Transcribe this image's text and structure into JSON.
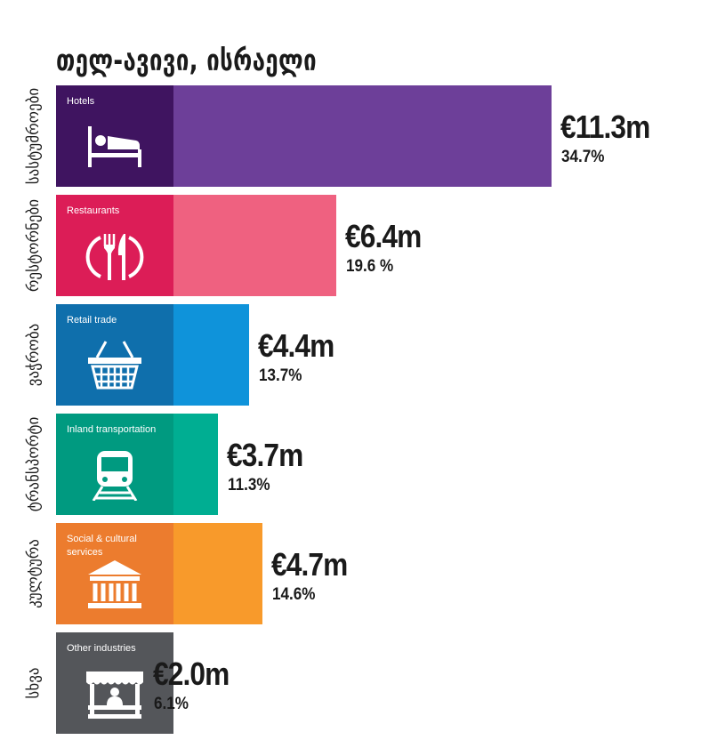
{
  "chart_data": {
    "type": "bar",
    "title": "თელ-ავივი, ისრაელი",
    "categories": [
      "Hotels",
      "Restaurants",
      "Retail trade",
      "Inland transportation",
      "Social & cultural services",
      "Other industries"
    ],
    "side_labels": [
      "სასტუმროები",
      "რესტორნები",
      "ვაჭრობა",
      "ტრანსპორტი",
      "კულტურა",
      "სხვა"
    ],
    "values": [
      11.3,
      6.4,
      4.4,
      3.7,
      4.7,
      2.0
    ],
    "value_labels": [
      "€11.3m",
      "€6.4m",
      "€4.4m",
      "€3.7m",
      "€4.7m",
      "€2.0m"
    ],
    "percent_labels": [
      "34.7%",
      "19.6 %",
      "13.7%",
      "11.3%",
      "14.6%",
      "6.1%"
    ],
    "icons": [
      "bed-icon",
      "fork-knife-icon",
      "shopping-basket-icon",
      "train-icon",
      "museum-icon",
      "market-stall-icon"
    ],
    "colors_dark": [
      "#3f1460",
      "#dc1d57",
      "#0f6fac",
      "#009a80",
      "#ec7c2e",
      "#54565a"
    ],
    "colors_light": [
      "#6d3f99",
      "#ef6180",
      "#0f93da",
      "#00ae92",
      "#f89a2b",
      "#8a8c8f"
    ]
  }
}
